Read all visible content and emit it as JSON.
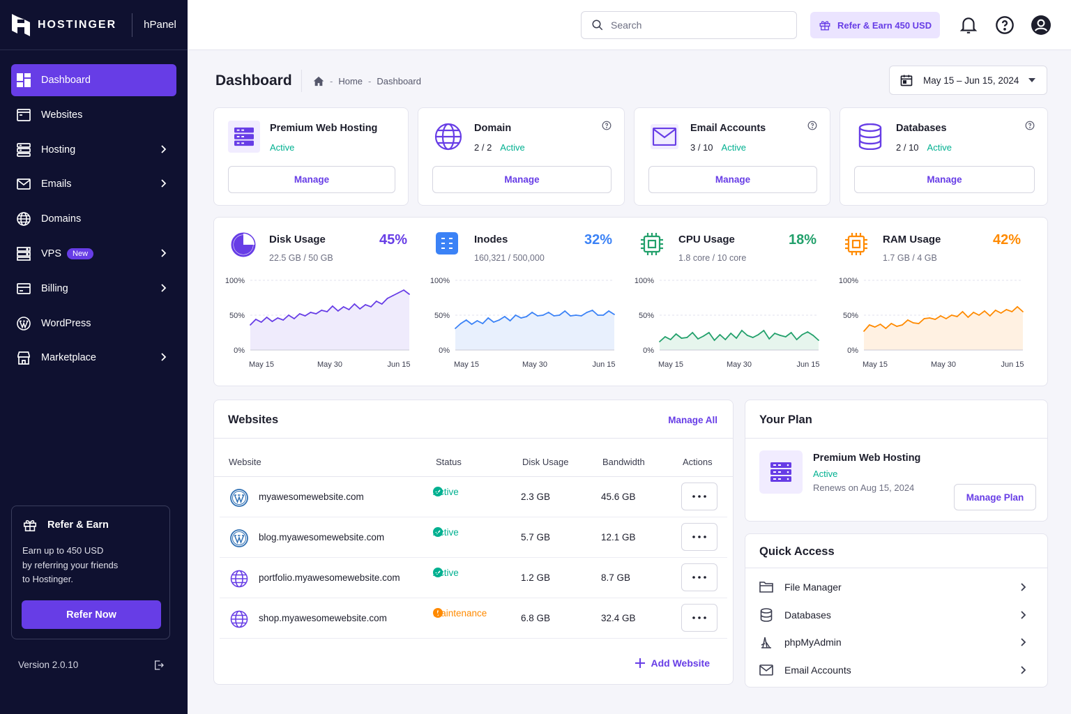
{
  "brand": {
    "name": "HOSTINGER",
    "product": "hPanel"
  },
  "nav": {
    "items": [
      {
        "label": "Dashboard",
        "icon": "dashboard-icon",
        "active": true,
        "submenu": false
      },
      {
        "label": "Websites",
        "icon": "browser-icon",
        "submenu": false
      },
      {
        "label": "Hosting",
        "icon": "server-icon",
        "submenu": true
      },
      {
        "label": "Emails",
        "icon": "mail-icon",
        "submenu": true
      },
      {
        "label": "Domains",
        "icon": "globe-icon",
        "submenu": false
      },
      {
        "label": "VPS",
        "icon": "vps-icon",
        "submenu": true,
        "badge": "New"
      },
      {
        "label": "Billing",
        "icon": "billing-icon",
        "submenu": true
      },
      {
        "label": "WordPress",
        "icon": "wordpress-icon",
        "submenu": false
      },
      {
        "label": "Marketplace",
        "icon": "store-icon",
        "submenu": true
      }
    ]
  },
  "refer_card": {
    "title": "Refer & Earn",
    "text_lines": [
      "Earn up to 450 USD",
      "by referring your friends",
      "to Hostinger."
    ],
    "button": "Refer Now"
  },
  "version": "Version 2.0.10",
  "topbar": {
    "search_placeholder": "Search",
    "refer_label": "Refer & Earn 450 USD"
  },
  "page": {
    "title": "Dashboard",
    "breadcrumb": [
      "Home",
      "Dashboard"
    ],
    "date_range": "May 15 – Jun 15, 2024"
  },
  "services": [
    {
      "title": "Premium Web Hosting",
      "count": "",
      "status": "Active",
      "button": "Manage",
      "icon": "hosting-icon",
      "help": false
    },
    {
      "title": "Domain",
      "count": "2 / 2",
      "status": "Active",
      "button": "Manage",
      "icon": "globe-icon",
      "help": true
    },
    {
      "title": "Email Accounts",
      "count": "3 / 10",
      "status": "Active",
      "button": "Manage",
      "icon": "mail-icon",
      "help": true
    },
    {
      "title": "Databases",
      "count": "2 / 10",
      "status": "Active",
      "button": "Manage",
      "icon": "database-icon",
      "help": true
    }
  ],
  "metrics": [
    {
      "title": "Disk Usage",
      "detail": "22.5 GB / 50 GB",
      "percent": "45%",
      "color": "#673de6",
      "fill": "#efebfc",
      "icon": "pie-icon"
    },
    {
      "title": "Inodes",
      "detail": "160,321 / 500,000",
      "percent": "32%",
      "color": "#3b82f6",
      "fill": "#e8f0fd",
      "icon": "inodes-icon"
    },
    {
      "title": "CPU Usage",
      "detail": "1.8 core / 10 core",
      "percent": "18%",
      "color": "#22a06b",
      "fill": "#e6f5ed",
      "icon": "cpu-icon"
    },
    {
      "title": "RAM Usage",
      "detail": "1.7 GB / 4 GB",
      "percent": "42%",
      "color": "#ff8a00",
      "fill": "#fff1e2",
      "icon": "ram-icon"
    }
  ],
  "chart_data": [
    {
      "type": "area",
      "title": "Disk Usage",
      "x_labels": [
        "May 15",
        "May 30",
        "Jun 15"
      ],
      "ylim": [
        0,
        100
      ],
      "y_ticks": [
        "100%",
        "50%",
        "0%"
      ],
      "values": [
        36,
        44,
        40,
        47,
        41,
        46,
        43,
        50,
        45,
        52,
        49,
        54,
        52,
        57,
        55,
        63,
        56,
        62,
        58,
        66,
        59,
        65,
        62,
        70,
        66,
        74,
        78,
        82,
        86,
        80
      ]
    },
    {
      "type": "area",
      "title": "Inodes",
      "x_labels": [
        "May 15",
        "May 30",
        "Jun 15"
      ],
      "ylim": [
        0,
        100
      ],
      "y_ticks": [
        "100%",
        "50%",
        "0%"
      ],
      "values": [
        31,
        38,
        43,
        37,
        42,
        38,
        46,
        40,
        43,
        48,
        42,
        50,
        46,
        48,
        54,
        49,
        50,
        54,
        49,
        50,
        56,
        49,
        50,
        49,
        54,
        57,
        50,
        50,
        56,
        51
      ]
    },
    {
      "type": "area",
      "title": "CPU Usage",
      "x_labels": [
        "May 15",
        "May 30",
        "Jun 15"
      ],
      "ylim": [
        0,
        100
      ],
      "y_ticks": [
        "100%",
        "50%",
        "0%"
      ],
      "values": [
        12,
        19,
        15,
        23,
        17,
        18,
        25,
        16,
        20,
        25,
        14,
        22,
        15,
        24,
        17,
        28,
        21,
        18,
        22,
        28,
        16,
        24,
        21,
        19,
        25,
        15,
        22,
        26,
        21,
        14
      ]
    },
    {
      "type": "area",
      "title": "RAM Usage",
      "x_labels": [
        "May 15",
        "May 30",
        "Jun 15"
      ],
      "ylim": [
        0,
        100
      ],
      "y_ticks": [
        "100%",
        "50%",
        "0%"
      ],
      "values": [
        27,
        36,
        33,
        37,
        31,
        38,
        34,
        36,
        43,
        39,
        38,
        45,
        46,
        44,
        49,
        45,
        50,
        48,
        55,
        47,
        54,
        50,
        56,
        49,
        57,
        53,
        58,
        55,
        62,
        55
      ]
    }
  ],
  "websites": {
    "title": "Websites",
    "manage_all": "Manage All",
    "columns": [
      "Website",
      "Status",
      "Disk Usage",
      "Bandwidth",
      "Actions"
    ],
    "rows": [
      {
        "site": "myawesomewebsite.com",
        "status": "Active",
        "status_type": "ok",
        "disk": "2.3 GB",
        "bandwidth": "45.6 GB",
        "icon": "wordpress-icon"
      },
      {
        "site": "blog.myawesomewebsite.com",
        "status": "Active",
        "status_type": "ok",
        "disk": "5.7 GB",
        "bandwidth": "12.1 GB",
        "icon": "wordpress-icon"
      },
      {
        "site": "portfolio.myawesomewebsite.com",
        "status": "Active",
        "status_type": "ok",
        "disk": "1.2 GB",
        "bandwidth": "8.7 GB",
        "icon": "globe-icon"
      },
      {
        "site": "shop.myawesomewebsite.com",
        "status": "Maintenance",
        "status_type": "warn",
        "disk": "6.8 GB",
        "bandwidth": "32.4 GB",
        "icon": "globe-icon"
      }
    ],
    "add_label": "Add Website"
  },
  "plan": {
    "title": "Your Plan",
    "name": "Premium Web Hosting",
    "status": "Active",
    "renews": "Renews on Aug 15, 2024",
    "button": "Manage Plan"
  },
  "quick_access": {
    "title": "Quick Access",
    "items": [
      {
        "label": "File Manager",
        "icon": "folder-icon"
      },
      {
        "label": "Databases",
        "icon": "database-icon"
      },
      {
        "label": "phpMyAdmin",
        "icon": "phpmyadmin-icon"
      },
      {
        "label": "Email Accounts",
        "icon": "mail-icon"
      }
    ]
  },
  "colors": {
    "accent": "#673de6",
    "sidebar": "#0f1130",
    "success": "#00b090",
    "warning": "#ff8a00"
  }
}
